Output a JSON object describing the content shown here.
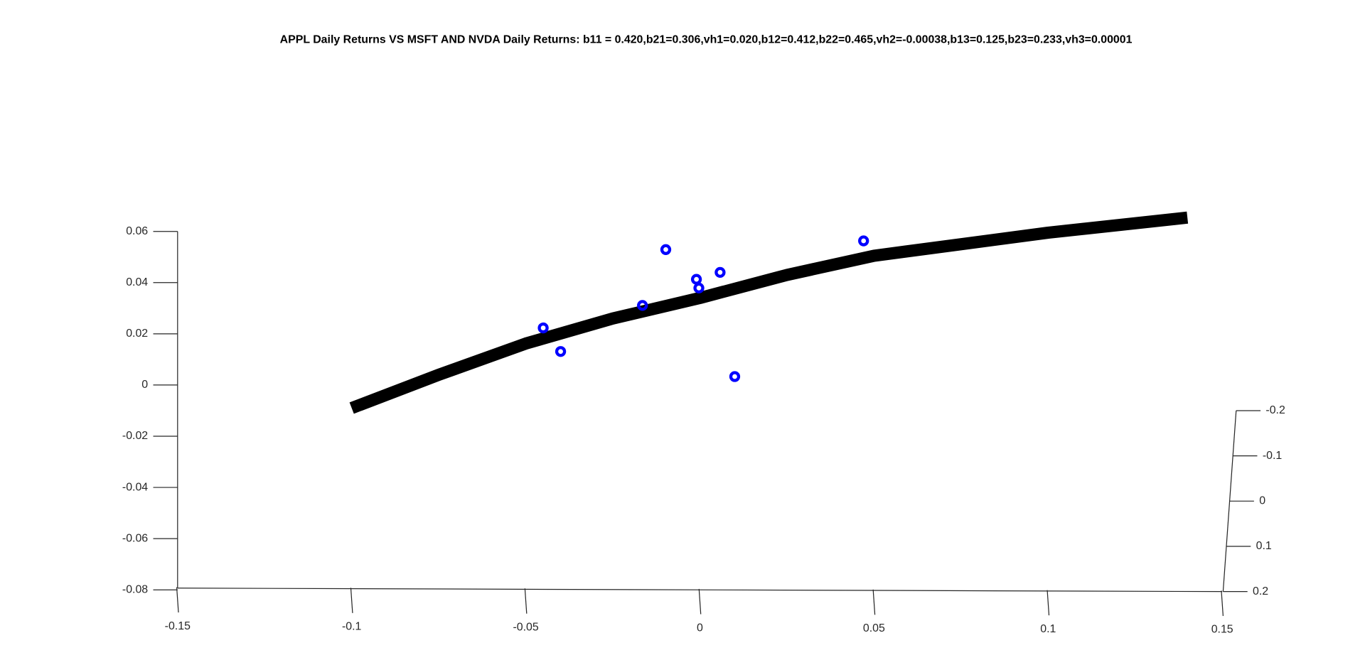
{
  "chart_data": {
    "type": "scatter",
    "title": "APPL Daily Returns VS MSFT AND NVDA Daily Returns: b11 = 0.420,b21=0.306,vh1=0.020,b12=0.412,b22=0.465,vh2=-0.00038,b13=0.125,b23=0.233,vh3=0.00001",
    "xlim": [
      -0.15,
      0.15
    ],
    "xticks": [
      -0.15,
      -0.1,
      -0.05,
      0,
      0.05,
      0.1,
      0.15
    ],
    "ylim": [
      -0.08,
      0.06
    ],
    "yticks": [
      0.06,
      0.04,
      0.02,
      0,
      -0.02,
      -0.04,
      -0.06,
      -0.08
    ],
    "zlim": [
      -0.2,
      0.2
    ],
    "zticks": [
      -0.2,
      -0.1,
      0,
      0.1,
      0.2
    ],
    "points": {
      "color": "#0000ff",
      "x": [
        -0.045,
        -0.04,
        -0.0165,
        -0.0098,
        -0.001,
        -0.0003,
        0.0058,
        0.01,
        0.047
      ],
      "y": [
        0.0223,
        0.0131,
        0.0311,
        0.0529,
        0.0413,
        0.0379,
        0.044,
        0.0033,
        0.0563
      ]
    },
    "curve": {
      "color": "#000000",
      "x": [
        -0.1,
        -0.075,
        -0.05,
        -0.025,
        0,
        0.025,
        0.05,
        0.075,
        0.1,
        0.14
      ],
      "y": [
        -0.009,
        0.004,
        0.0162,
        0.026,
        0.034,
        0.043,
        0.0505,
        0.055,
        0.0595,
        0.0654
      ]
    }
  }
}
